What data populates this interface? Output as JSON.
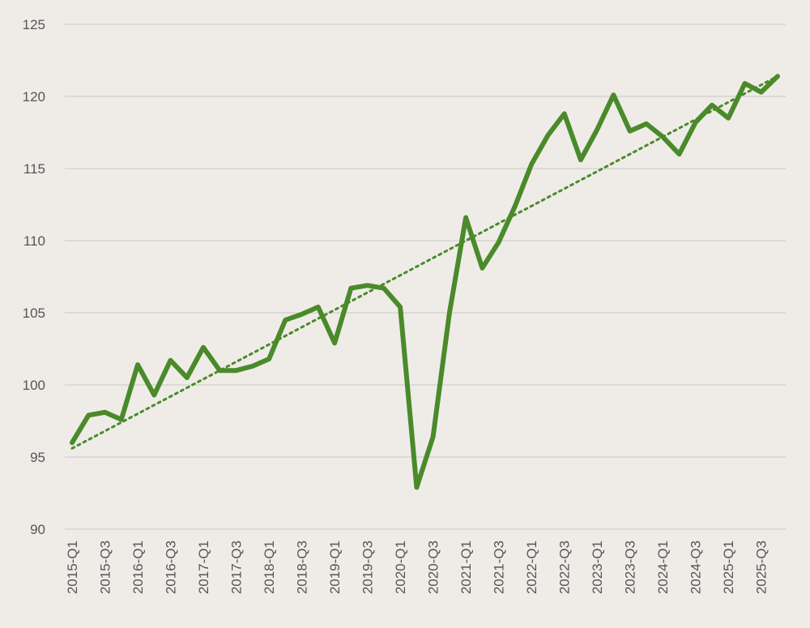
{
  "chart_data": {
    "type": "line",
    "title": "",
    "xlabel": "",
    "ylabel": "",
    "ylim": [
      90,
      125
    ],
    "yticks": [
      90,
      95,
      100,
      105,
      110,
      115,
      120,
      125
    ],
    "grid": true,
    "legend": "none",
    "x": [
      "2015-Q1",
      "2015-Q2",
      "2015-Q3",
      "2015-Q4",
      "2016-Q1",
      "2016-Q2",
      "2016-Q3",
      "2016-Q4",
      "2017-Q1",
      "2017-Q2",
      "2017-Q3",
      "2017-Q4",
      "2018-Q1",
      "2018-Q2",
      "2018-Q3",
      "2018-Q4",
      "2019-Q1",
      "2019-Q2",
      "2019-Q3",
      "2019-Q4",
      "2020-Q1",
      "2020-Q2",
      "2020-Q3",
      "2020-Q4",
      "2021-Q1",
      "2021-Q2",
      "2021-Q3",
      "2021-Q4",
      "2022-Q1",
      "2022-Q2",
      "2022-Q3",
      "2022-Q4",
      "2023-Q1",
      "2023-Q2",
      "2023-Q3",
      "2023-Q4",
      "2024-Q1",
      "2024-Q2",
      "2024-Q3",
      "2024-Q4",
      "2025-Q1",
      "2025-Q2",
      "2025-Q3",
      "2025-Q4"
    ],
    "xtick_labels": [
      "2015-Q1",
      "2015-Q3",
      "2016-Q1",
      "2016-Q3",
      "2017-Q1",
      "2017-Q3",
      "2018-Q1",
      "2018-Q3",
      "2019-Q1",
      "2019-Q3",
      "2020-Q1",
      "2020-Q3",
      "2021-Q1",
      "2021-Q3",
      "2022-Q1",
      "2022-Q3",
      "2023-Q1",
      "2023-Q3",
      "2024-Q1",
      "2024-Q3",
      "2025-Q1",
      "2025-Q3"
    ],
    "series": [
      {
        "values": [
          96.0,
          97.9,
          98.1,
          97.6,
          101.4,
          99.3,
          101.7,
          100.5,
          102.6,
          101.0,
          101.0,
          101.3,
          101.8,
          104.5,
          104.9,
          105.4,
          102.9,
          106.7,
          106.9,
          106.7,
          105.4,
          92.9,
          96.4,
          105.0,
          111.6,
          108.1,
          109.9,
          112.4,
          115.3,
          117.3,
          118.8,
          115.6,
          117.7,
          120.1,
          117.6,
          118.1,
          117.2,
          116.0,
          118.2,
          119.4,
          118.5,
          120.9,
          120.3,
          121.4
        ],
        "color": "#4a8a2a"
      }
    ],
    "trendline": {
      "style": "dotted",
      "color": "#4a8a2a",
      "start": 95.6,
      "end": 121.4
    },
    "colors": {
      "background": "#efece8",
      "gridline": "#d6d3cf",
      "tick_text": "#555555"
    }
  }
}
